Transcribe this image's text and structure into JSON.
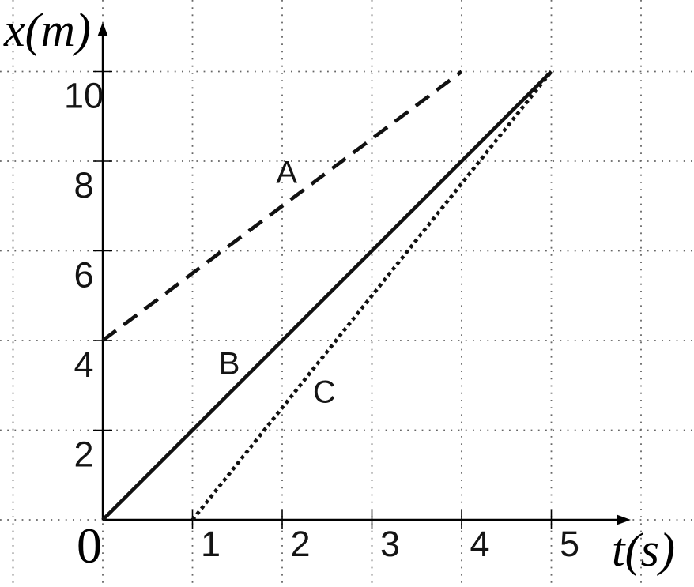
{
  "chart_data": {
    "type": "line",
    "title": "",
    "xlabel": "t(s)",
    "ylabel": "x(m)",
    "origin_label": "0",
    "xlim": [
      0,
      5.9
    ],
    "ylim": [
      0,
      11.6
    ],
    "x_ticks": [
      1,
      2,
      3,
      4,
      5
    ],
    "y_ticks": [
      2,
      4,
      6,
      8,
      10
    ],
    "grid": {
      "show": true,
      "style": "dotted",
      "color": "#666666",
      "x_lines": [
        -1,
        0,
        1,
        2,
        3,
        4,
        5,
        6
      ],
      "y_lines": [
        0,
        2,
        4,
        6,
        8,
        10
      ]
    },
    "axis_color": "#000000",
    "line_color": "#111111",
    "legend": "none",
    "series": [
      {
        "name": "A",
        "style": "dashed",
        "points": [
          [
            0,
            4
          ],
          [
            4,
            10
          ]
        ],
        "label_pos": [
          2.05,
          7.77
        ]
      },
      {
        "name": "B",
        "style": "solid",
        "points": [
          [
            0,
            0
          ],
          [
            5,
            10
          ]
        ],
        "label_pos": [
          1.41,
          3.51
        ]
      },
      {
        "name": "C",
        "style": "dotted",
        "points": [
          [
            1,
            0
          ],
          [
            5,
            10
          ]
        ],
        "label_pos": [
          2.47,
          2.87
        ]
      }
    ]
  }
}
